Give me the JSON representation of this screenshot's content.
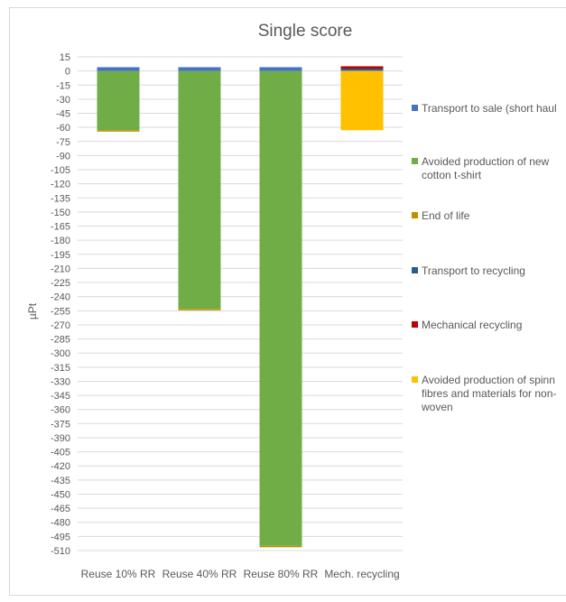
{
  "chart_data": {
    "type": "bar",
    "stacked": true,
    "title": "Single score",
    "xlabel": "",
    "ylabel": "µPt",
    "ylim": [
      -510,
      15
    ],
    "ytick_step": 15,
    "grid": true,
    "legend_position": "right",
    "categories": [
      "Reuse 10% RR",
      "Reuse 40% RR",
      "Reuse 80% RR",
      "Mech. recycling"
    ],
    "series": [
      {
        "name": "Transport to sale (short haul)",
        "color": "#4472C4",
        "values": [
          4,
          4,
          4,
          0.5
        ]
      },
      {
        "name": "Avoided production of new cotton t-shirt",
        "color": "#70AD47",
        "values": [
          -63,
          -253,
          -505,
          0
        ]
      },
      {
        "name": "End of life",
        "color": "#BF9000",
        "values": [
          -1.5,
          -1.5,
          -1.5,
          0
        ]
      },
      {
        "name": "Transport to recycling",
        "color": "#255E91",
        "values": [
          0,
          0,
          0,
          2
        ]
      },
      {
        "name": "Mechanical recycling",
        "color": "#C00000",
        "values": [
          0,
          0,
          0,
          2.5
        ]
      },
      {
        "name": "Avoided production of spinning fibres and materials for non-woven",
        "color": "#FFC000",
        "values": [
          0,
          0,
          0,
          -63
        ]
      }
    ]
  },
  "legend_lines": [
    [
      "Transport to sale (short haul"
    ],
    [
      "Avoided production of new",
      "cotton t-shirt"
    ],
    [
      "End of life"
    ],
    [
      "Transport to recycling"
    ],
    [
      "Mechanical recycling"
    ],
    [
      "Avoided production of spinn",
      "fibres and materials for non-",
      "woven"
    ]
  ]
}
